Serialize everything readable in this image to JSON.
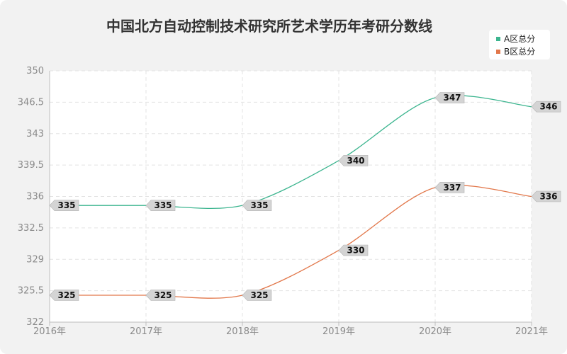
{
  "chart_data": {
    "type": "line",
    "title": "中国北方自动控制技术研究所艺术学历年考研分数线",
    "categories": [
      "2016年",
      "2017年",
      "2018年",
      "2019年",
      "2020年",
      "2021年"
    ],
    "ylim": [
      322,
      350
    ],
    "yticks": [
      "350",
      "346.5",
      "343",
      "339.5",
      "336",
      "332.5",
      "329",
      "325.5",
      "322"
    ],
    "grid": true,
    "legend_position": "top-right",
    "series": [
      {
        "name": "A区总分",
        "color": "#3cb58f",
        "values": [
          335,
          335,
          335,
          340,
          347,
          346
        ]
      },
      {
        "name": "B区总分",
        "color": "#e2774a",
        "values": [
          325,
          325,
          325,
          330,
          337,
          336
        ]
      }
    ]
  }
}
